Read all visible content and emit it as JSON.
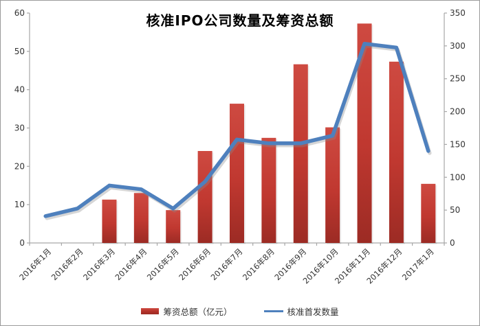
{
  "title": "核准IPO公司数量及筹资总额",
  "legend": {
    "bar_label": "筹资总额（亿元）",
    "line_label": "核准首发数量"
  },
  "colors": {
    "bar": "#C03830",
    "bar_top": "#CE4A41",
    "bar_bottom": "#9C2B24",
    "line": "#4E80BD",
    "line_shadow": "#8A8A8A",
    "axis": "#A6A6A6",
    "tick_text": "#333333"
  },
  "chart_data": {
    "type": "combo",
    "title": "核准IPO公司数量及筹资总额",
    "categories": [
      "2016年1月",
      "2016年2月",
      "2016年3月",
      "2016年4月",
      "2016年5月",
      "2016年6月",
      "2016年7月",
      "2016年8月",
      "2016年9月",
      "2016年10月",
      "2016年11月",
      "2016年12月",
      "2017年1月"
    ],
    "series": [
      {
        "name": "筹资总额（亿元）",
        "type": "bar",
        "axis": "right",
        "values": [
          0,
          0,
          66,
          76,
          50,
          140,
          212,
          160,
          272,
          176,
          334,
          276,
          90
        ]
      },
      {
        "name": "核准首发数量",
        "type": "line",
        "axis": "left",
        "values": [
          7,
          9,
          15,
          14,
          9,
          16,
          27,
          26,
          26,
          28,
          52,
          51,
          24
        ]
      }
    ],
    "left_axis": {
      "min": 0,
      "max": 60,
      "step": 10,
      "ticks": [
        0,
        10,
        20,
        30,
        40,
        50,
        60
      ]
    },
    "right_axis": {
      "min": 0,
      "max": 350,
      "step": 50,
      "ticks": [
        0,
        50,
        100,
        150,
        200,
        250,
        300,
        350
      ]
    },
    "grid": false,
    "legend_position": "bottom"
  }
}
